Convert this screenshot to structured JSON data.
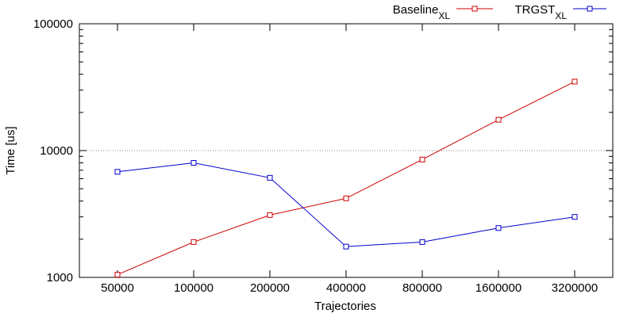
{
  "chart_data": {
    "type": "line",
    "xlabel": "Trajectories",
    "ylabel": "Time [us]",
    "yscale": "log",
    "ylim": [
      1000,
      100000
    ],
    "y_ticks": [
      "1000",
      "10000",
      "100000"
    ],
    "categories": [
      "50000",
      "100000",
      "200000",
      "400000",
      "800000",
      "1600000",
      "3200000"
    ],
    "grid": "horizontal dotted line at 10000",
    "legend_position": "top-right",
    "series": [
      {
        "name": "Baseline",
        "name_subscript": "XL",
        "color": "#cc0000",
        "marker": "open-square",
        "values": [
          1050,
          1900,
          3100,
          4200,
          8500,
          17500,
          35000
        ]
      },
      {
        "name": "TRGST",
        "name_subscript": "XL",
        "color": "#0000cc",
        "marker": "open-square",
        "values": [
          6800,
          8000,
          6100,
          1750,
          1900,
          2450,
          3000
        ]
      }
    ]
  }
}
